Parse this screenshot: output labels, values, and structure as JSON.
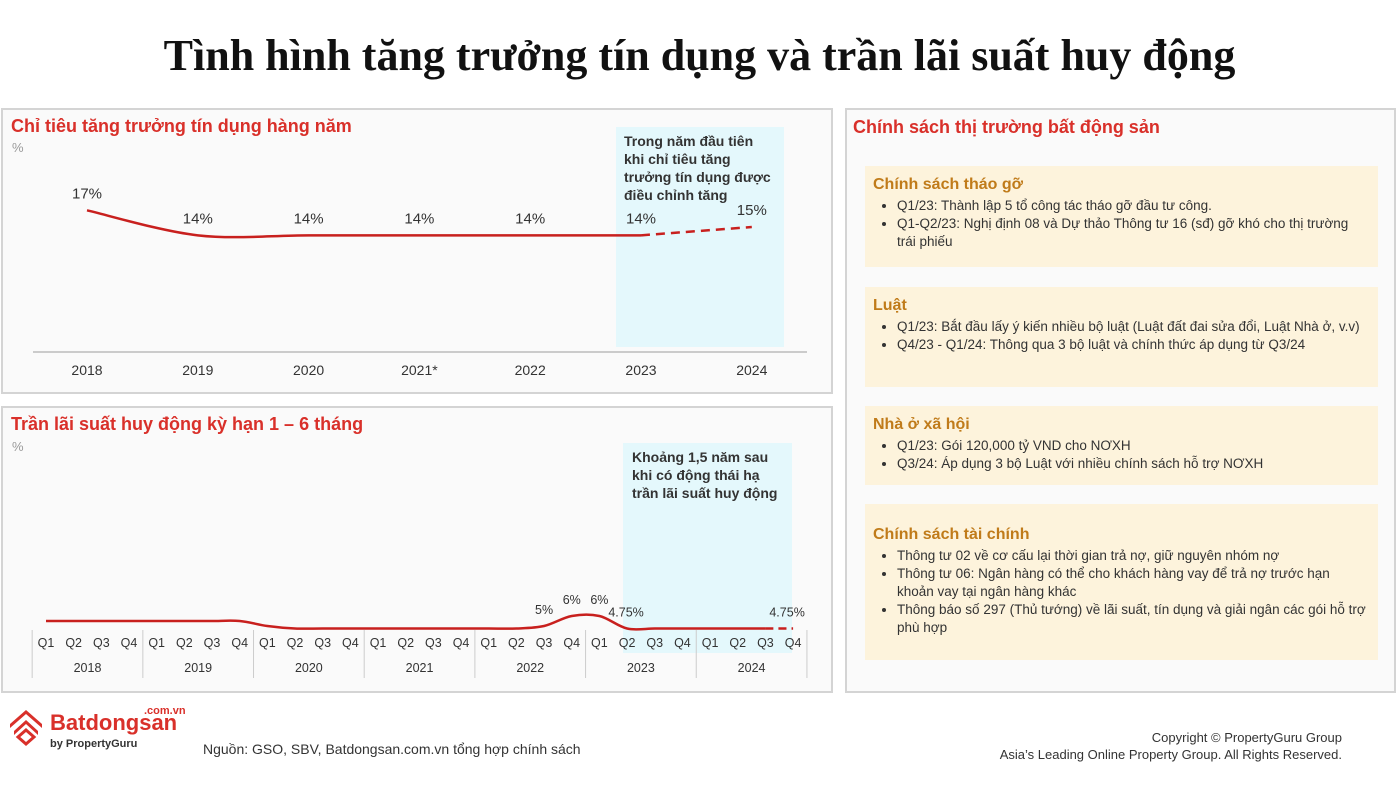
{
  "page_title": "Tình hình tăng trưởng tín dụng và trần lãi suất huy động",
  "chart_data": [
    {
      "type": "line",
      "title": "Chỉ tiêu tăng trưởng tín dụng hàng năm",
      "ylabel": "%",
      "categories": [
        "2018",
        "2019",
        "2020",
        "2021*",
        "2022",
        "2023",
        "2024"
      ],
      "values": [
        17,
        14,
        14,
        14,
        14,
        14,
        15
      ],
      "data_labels": [
        "17%",
        "14%",
        "14%",
        "14%",
        "14%",
        "14%",
        "15%"
      ],
      "projected_from_index": 5,
      "ylim": [
        0,
        24
      ],
      "annotation": [
        "Trong năm đầu tiên",
        "khi chỉ tiêu tăng",
        "trưởng tín dụng được",
        "điều chỉnh tăng"
      ]
    },
    {
      "type": "line",
      "title": "Trần lãi suất huy động kỳ hạn 1 – 6 tháng",
      "ylabel": "%",
      "quarters": [
        "Q1",
        "Q2",
        "Q3",
        "Q4"
      ],
      "years": [
        "2018",
        "2019",
        "2020",
        "2021",
        "2022",
        "2023",
        "2024"
      ],
      "values": [
        5.5,
        5.5,
        5.5,
        5.5,
        5.5,
        5.5,
        5.5,
        5.5,
        5,
        4.75,
        4.75,
        4.75,
        4.75,
        4.75,
        4.75,
        4.75,
        4.75,
        4.75,
        5,
        6,
        6,
        4.75,
        4.75,
        4.75,
        4.75,
        4.75,
        4.75,
        4.75
      ],
      "data_labels": [
        {
          "index": 18,
          "text": "5%"
        },
        {
          "index": 19,
          "text": "6%"
        },
        {
          "index": 20,
          "text": "6%"
        },
        {
          "index": 21,
          "text": "4.75%"
        },
        {
          "index": 27,
          "text": "4.75%"
        }
      ],
      "projected_from_index": 26,
      "ylim": [
        0,
        20
      ],
      "annotation": [
        "Khoảng 1,5 năm sau",
        "khi có động thái hạ",
        "trần lãi suất huy động"
      ]
    }
  ],
  "policy": {
    "title": "Chính sách thị trường bất động sản",
    "sections": [
      {
        "heading": "Chính sách tháo gỡ",
        "items": [
          "Q1/23: Thành lập 5 tổ công tác tháo gỡ đầu tư công.",
          "Q1-Q2/23: Nghị định 08 và Dự thảo Thông tư 16 (sđ) gỡ khó cho thị trường trái phiếu"
        ]
      },
      {
        "heading": "Luật",
        "items": [
          "Q1/23: Bắt đầu lấy ý kiến nhiều bộ luật (Luật đất đai sửa đổi, Luật Nhà ở, v.v)",
          "Q4/23 - Q1/24: Thông qua 3 bộ luật và chính thức áp dụng từ Q3/24"
        ]
      },
      {
        "heading": "Nhà ở xã hội",
        "items": [
          "Q1/23: Gói 120,000 tỷ VND cho NƠXH",
          "Q3/24: Áp dụng 3 bộ Luật với nhiều chính sách hỗ trợ NƠXH"
        ]
      },
      {
        "heading": "Chính sách tài chính",
        "items": [
          "Thông tư 02 về cơ cấu lại thời gian trả nợ, giữ nguyên nhóm nợ",
          "Thông tư 06: Ngân hàng có thể cho khách hàng vay để trả nợ trước hạn khoản vay tại ngân hàng khác",
          "Thông báo số 297 (Thủ tướng) về lãi suất, tín dụng và giải ngân các gói hỗ trợ phù hợp"
        ]
      }
    ]
  },
  "footer": {
    "brand": "Batdongsan",
    "brand_domain": ".com.vn",
    "brand_by": "by PropertyGuru",
    "source": "Nguồn: GSO, SBV, Batdongsan.com.vn tổng hợp chính sách",
    "copyright_1": "Copyright © PropertyGuru Group",
    "copyright_2": "Asia’s Leading Online Property Group. All Rights Reserved."
  },
  "colors": {
    "accent_red": "#d9302a",
    "line_red": "#c8201e",
    "highlight": "#e4f8fc",
    "box_bg": "#fdf3dc",
    "box_heading": "#c07b1a"
  }
}
